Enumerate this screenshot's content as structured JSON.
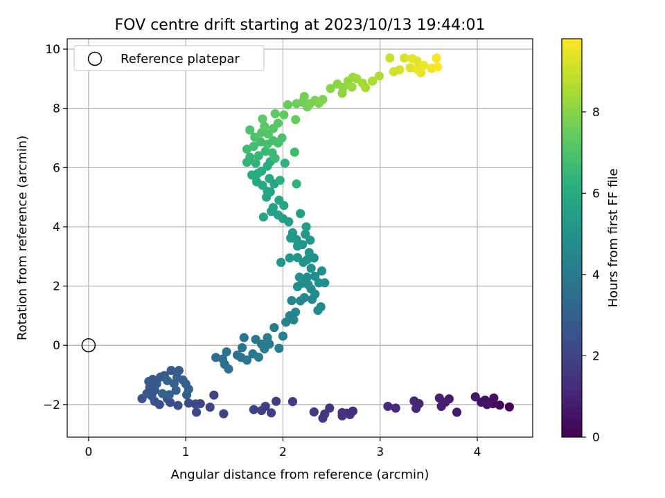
{
  "chart_data": {
    "type": "scatter",
    "title": "FOV centre drift starting at 2023/10/13 19:44:01",
    "xlabel": "Angular distance from reference (arcmin)",
    "ylabel": "Rotation from reference (arcmin)",
    "xlim": [
      -0.22,
      4.57
    ],
    "ylim": [
      -3.1,
      10.35
    ],
    "xticks": [
      0,
      1,
      2,
      3,
      4
    ],
    "yticks": [
      -2,
      0,
      2,
      4,
      6,
      8,
      10
    ],
    "grid": true,
    "legend": {
      "placement": "top-left",
      "entries": [
        "Reference platepar"
      ]
    },
    "reference_point": {
      "x": 0,
      "y": 0,
      "label": "Reference platepar"
    },
    "colorbar": {
      "label": "Hours from first FF file",
      "range": [
        0,
        9.8
      ],
      "ticks": [
        0,
        2,
        4,
        6,
        8
      ],
      "colormap": "viridis"
    },
    "series": [
      {
        "points": [
          [
            4.33,
            -2.08,
            0.1
          ],
          [
            4.23,
            -2.02,
            0.2
          ],
          [
            4.16,
            -1.97,
            0.3
          ],
          [
            4.12,
            -1.93,
            0.35
          ],
          [
            4.17,
            -1.78,
            0.4
          ],
          [
            4.08,
            -1.85,
            0.45
          ],
          [
            4.04,
            -1.92,
            0.5
          ],
          [
            4.1,
            -2.0,
            0.55
          ],
          [
            3.98,
            -1.74,
            0.6
          ],
          [
            3.79,
            -2.26,
            0.7
          ],
          [
            3.71,
            -1.81,
            0.75
          ],
          [
            3.67,
            -1.92,
            0.8
          ],
          [
            3.63,
            -2.06,
            0.85
          ],
          [
            3.61,
            -1.78,
            0.9
          ],
          [
            3.4,
            -1.97,
            1.0
          ],
          [
            3.35,
            -1.88,
            1.05
          ],
          [
            3.37,
            -2.13,
            1.1
          ],
          [
            3.16,
            -2.12,
            1.15
          ],
          [
            3.08,
            -2.06,
            1.2
          ],
          [
            2.72,
            -2.22,
            1.3
          ],
          [
            2.69,
            -2.34,
            1.35
          ],
          [
            2.66,
            -2.29,
            1.4
          ],
          [
            2.61,
            -2.38,
            1.42
          ],
          [
            2.61,
            -2.27,
            1.45
          ],
          [
            2.48,
            -2.12,
            1.5
          ],
          [
            2.41,
            -2.46,
            1.55
          ],
          [
            2.43,
            -2.32,
            1.6
          ],
          [
            2.32,
            -2.25,
            1.62
          ],
          [
            2.1,
            -1.9,
            1.7
          ],
          [
            1.93,
            -1.89,
            1.75
          ],
          [
            1.88,
            -2.28,
            1.8
          ],
          [
            1.82,
            -2.06,
            1.82
          ],
          [
            1.78,
            -2.2,
            1.85
          ],
          [
            1.7,
            -2.17,
            1.9
          ],
          [
            1.39,
            -2.31,
            1.95
          ],
          [
            1.29,
            -1.68,
            2.0
          ],
          [
            1.25,
            -2.09,
            2.05
          ],
          [
            1.15,
            -1.97,
            2.1
          ],
          [
            1.1,
            -1.98,
            2.12
          ],
          [
            1.11,
            -2.26,
            2.15
          ],
          [
            1.03,
            -1.95,
            2.2
          ],
          [
            0.92,
            -2.03,
            2.25
          ],
          [
            0.84,
            -1.93,
            2.3
          ],
          [
            0.73,
            -2.0,
            2.35
          ],
          [
            0.81,
            -1.8,
            2.4
          ],
          [
            0.68,
            -1.89,
            2.45
          ],
          [
            0.55,
            -1.8,
            2.5
          ],
          [
            0.6,
            -1.63,
            2.55
          ],
          [
            0.65,
            -1.71,
            2.6
          ],
          [
            0.68,
            -1.52,
            2.62
          ],
          [
            0.63,
            -1.42,
            2.65
          ],
          [
            0.7,
            -1.3,
            2.7
          ],
          [
            0.62,
            -1.22,
            2.72
          ],
          [
            0.66,
            -1.15,
            2.75
          ],
          [
            0.74,
            -1.07,
            2.8
          ],
          [
            0.78,
            -1.02,
            2.82
          ],
          [
            0.85,
            -0.85,
            2.85
          ],
          [
            0.93,
            -0.85,
            2.88
          ],
          [
            0.91,
            -1.08,
            2.9
          ],
          [
            0.97,
            -1.17,
            2.92
          ],
          [
            1.0,
            -1.3,
            2.95
          ],
          [
            1.03,
            -1.48,
            2.97
          ],
          [
            1.01,
            -1.67,
            3.0
          ],
          [
            0.9,
            -1.52,
            3.02
          ],
          [
            0.83,
            -1.67,
            3.05
          ],
          [
            0.76,
            -1.63,
            3.08
          ],
          [
            0.88,
            -1.29,
            3.1
          ],
          [
            0.81,
            -1.19,
            3.12
          ],
          [
            1.31,
            -0.41,
            3.5
          ],
          [
            1.38,
            -0.46,
            3.55
          ],
          [
            1.4,
            -0.64,
            3.6
          ],
          [
            1.44,
            -0.8,
            3.62
          ],
          [
            1.42,
            -0.22,
            3.65
          ],
          [
            1.53,
            -0.33,
            3.7
          ],
          [
            1.57,
            -0.41,
            3.72
          ],
          [
            1.58,
            -0.08,
            3.75
          ],
          [
            1.63,
            -0.5,
            3.8
          ],
          [
            1.6,
            0.26,
            3.85
          ],
          [
            1.69,
            -0.29,
            3.9
          ],
          [
            1.72,
            0.2,
            3.92
          ],
          [
            1.78,
            0.04,
            3.95
          ],
          [
            1.81,
            -0.12,
            4.0
          ],
          [
            1.75,
            -0.4,
            4.02
          ],
          [
            1.84,
            0.26,
            4.05
          ],
          [
            1.86,
            0.04,
            4.1
          ],
          [
            1.91,
            0.6,
            4.15
          ],
          [
            1.96,
            -0.1,
            4.2
          ],
          [
            2.0,
            0.31,
            4.25
          ],
          [
            2.03,
            0.78,
            4.3
          ],
          [
            2.07,
            1.0,
            4.35
          ],
          [
            2.11,
            0.86,
            4.4
          ],
          [
            2.13,
            1.12,
            4.42
          ],
          [
            2.09,
            1.51,
            4.45
          ],
          [
            2.18,
            1.5,
            4.5
          ],
          [
            2.22,
            1.61,
            4.52
          ],
          [
            2.3,
            1.55,
            4.55
          ],
          [
            2.36,
            1.18,
            4.6
          ],
          [
            2.39,
            1.3,
            4.62
          ],
          [
            2.33,
            1.73,
            4.65
          ],
          [
            2.29,
            1.9,
            4.68
          ],
          [
            2.26,
            2.05,
            4.7
          ],
          [
            2.2,
            2.1,
            4.72
          ],
          [
            2.25,
            2.3,
            4.75
          ],
          [
            2.15,
            1.98,
            4.78
          ],
          [
            2.37,
            2.11,
            4.8
          ],
          [
            2.43,
            2.11,
            4.82
          ],
          [
            2.4,
            2.51,
            4.85
          ],
          [
            2.33,
            2.33,
            4.88
          ],
          [
            2.29,
            2.6,
            4.9
          ],
          [
            2.32,
            2.95,
            4.92
          ],
          [
            2.21,
            2.8,
            4.95
          ],
          [
            2.17,
            2.3,
            4.98
          ],
          [
            2.25,
            2.89,
            5.0
          ],
          [
            2.2,
            3.4,
            5.05
          ],
          [
            2.27,
            3.13,
            5.08
          ],
          [
            2.14,
            3.57,
            5.1
          ],
          [
            2.15,
            2.96,
            5.12
          ],
          [
            2.07,
            2.95,
            5.15
          ],
          [
            1.98,
            2.8,
            5.18
          ],
          [
            2.28,
            3.55,
            5.2
          ],
          [
            2.23,
            3.75,
            5.22
          ],
          [
            2.15,
            3.35,
            5.25
          ],
          [
            2.1,
            3.8,
            5.3
          ],
          [
            2.08,
            3.62,
            5.32
          ],
          [
            2.24,
            4.0,
            5.35
          ],
          [
            2.18,
            4.45,
            5.4
          ],
          [
            2.06,
            4.17,
            5.45
          ],
          [
            2.0,
            4.28,
            5.5
          ],
          [
            1.95,
            4.4,
            5.55
          ],
          [
            1.88,
            4.52,
            5.6
          ],
          [
            1.9,
            4.65,
            5.62
          ],
          [
            1.96,
            4.9,
            5.65
          ],
          [
            1.8,
            4.33,
            5.7
          ],
          [
            1.83,
            5.0,
            5.72
          ],
          [
            1.87,
            5.18,
            5.75
          ],
          [
            2.01,
            4.72,
            5.78
          ],
          [
            1.91,
            5.45,
            5.8
          ],
          [
            1.84,
            5.2,
            5.85
          ],
          [
            1.79,
            5.4,
            5.88
          ],
          [
            1.86,
            5.63,
            5.9
          ],
          [
            1.73,
            5.52,
            5.95
          ],
          [
            1.68,
            5.75,
            6.0
          ],
          [
            1.74,
            5.8,
            6.02
          ],
          [
            1.78,
            5.88,
            6.05
          ],
          [
            1.84,
            6.05,
            6.1
          ],
          [
            1.87,
            6.2,
            6.15
          ],
          [
            1.97,
            5.57,
            6.2
          ],
          [
            2.02,
            6.15,
            6.25
          ],
          [
            2.14,
            5.45,
            6.3
          ],
          [
            1.72,
            6.15,
            6.35
          ],
          [
            1.63,
            6.18,
            6.4
          ],
          [
            1.66,
            6.35,
            6.45
          ],
          [
            1.75,
            6.4,
            6.5
          ],
          [
            1.82,
            6.55,
            6.55
          ],
          [
            1.89,
            6.5,
            6.6
          ],
          [
            1.92,
            6.31,
            6.62
          ],
          [
            2.12,
            6.52,
            6.65
          ],
          [
            1.63,
            6.62,
            6.7
          ],
          [
            1.7,
            6.72,
            6.75
          ],
          [
            1.77,
            6.87,
            6.78
          ],
          [
            1.84,
            6.79,
            6.8
          ],
          [
            1.9,
            6.91,
            6.82
          ],
          [
            1.95,
            6.83,
            6.85
          ],
          [
            1.99,
            7.0,
            6.9
          ],
          [
            1.71,
            7.03,
            6.95
          ],
          [
            1.66,
            7.27,
            7.0
          ],
          [
            1.78,
            7.18,
            7.05
          ],
          [
            1.85,
            7.13,
            7.1
          ],
          [
            1.9,
            7.32,
            7.15
          ],
          [
            1.95,
            7.5,
            7.2
          ],
          [
            1.81,
            7.39,
            7.25
          ],
          [
            1.79,
            7.64,
            7.3
          ],
          [
            1.92,
            7.82,
            7.35
          ],
          [
            2.01,
            7.78,
            7.4
          ],
          [
            2.13,
            7.62,
            7.45
          ],
          [
            2.05,
            8.12,
            7.5
          ],
          [
            2.14,
            8.16,
            7.55
          ],
          [
            2.2,
            8.21,
            7.6
          ],
          [
            2.25,
            8.05,
            7.65
          ],
          [
            2.22,
            8.4,
            7.7
          ],
          [
            2.33,
            8.27,
            7.75
          ],
          [
            2.28,
            8.16,
            7.8
          ],
          [
            2.37,
            8.17,
            7.85
          ],
          [
            2.41,
            8.3,
            7.9
          ],
          [
            2.49,
            8.67,
            8.0
          ],
          [
            2.56,
            8.82,
            8.05
          ],
          [
            2.62,
            8.7,
            8.1
          ],
          [
            2.61,
            8.51,
            8.15
          ],
          [
            2.67,
            8.92,
            8.2
          ],
          [
            2.71,
            8.72,
            8.25
          ],
          [
            2.72,
            9.05,
            8.3
          ],
          [
            2.76,
            9.0,
            8.35
          ],
          [
            2.82,
            8.85,
            8.4
          ],
          [
            2.85,
            8.7,
            8.45
          ],
          [
            2.92,
            8.92,
            8.55
          ],
          [
            2.99,
            9.09,
            8.6
          ],
          [
            3.1,
            9.7,
            9.0
          ],
          [
            3.14,
            9.24,
            9.1
          ],
          [
            3.2,
            9.3,
            9.15
          ],
          [
            3.25,
            9.7,
            9.2
          ],
          [
            3.31,
            9.37,
            9.3
          ],
          [
            3.33,
            9.68,
            9.35
          ],
          [
            3.38,
            9.6,
            9.4
          ],
          [
            3.38,
            9.32,
            9.45
          ],
          [
            3.42,
            9.2,
            9.5
          ],
          [
            3.45,
            9.45,
            9.55
          ],
          [
            3.53,
            9.35,
            9.6
          ],
          [
            3.58,
            9.7,
            9.7
          ],
          [
            3.59,
            9.4,
            9.8
          ]
        ]
      }
    ]
  }
}
